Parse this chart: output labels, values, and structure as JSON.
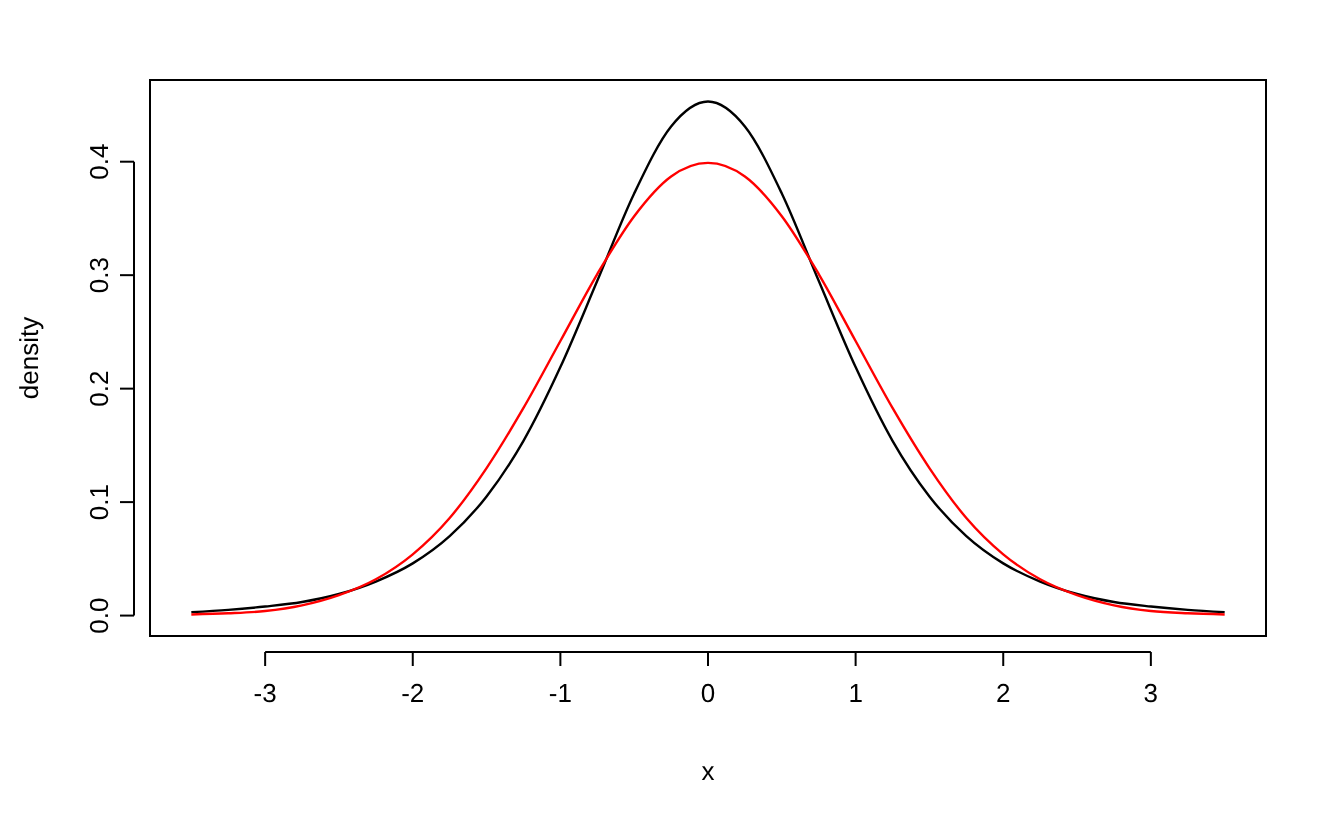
{
  "chart_data": {
    "type": "line",
    "xlabel": "x",
    "ylabel": "density",
    "x": [
      -3.5,
      -3.25,
      -3,
      -2.75,
      -2.5,
      -2.25,
      -2,
      -1.75,
      -1.5,
      -1.25,
      -1,
      -0.75,
      -0.5,
      -0.25,
      0,
      0.25,
      0.5,
      0.75,
      1,
      1.25,
      1.5,
      1.75,
      2,
      2.25,
      2.5,
      2.75,
      3,
      3.25,
      3.5
    ],
    "series": [
      {
        "color": "#000000",
        "values": [
          0.003,
          0.005,
          0.008,
          0.012,
          0.019,
          0.03,
          0.046,
          0.07,
          0.105,
          0.154,
          0.219,
          0.295,
          0.372,
          0.431,
          0.453,
          0.431,
          0.372,
          0.295,
          0.219,
          0.154,
          0.105,
          0.07,
          0.046,
          0.03,
          0.019,
          0.012,
          0.008,
          0.005,
          0.003
        ]
      },
      {
        "color": "#ff0000",
        "values": [
          0.001,
          0.002,
          0.004,
          0.009,
          0.018,
          0.032,
          0.054,
          0.086,
          0.13,
          0.183,
          0.242,
          0.301,
          0.352,
          0.387,
          0.399,
          0.387,
          0.352,
          0.301,
          0.242,
          0.183,
          0.13,
          0.086,
          0.054,
          0.032,
          0.018,
          0.009,
          0.004,
          0.002,
          0.001
        ]
      }
    ],
    "xlim": [
      -3.78,
      3.78
    ],
    "ylim": [
      -0.018,
      0.472
    ],
    "xticks": [
      -3,
      -2,
      -1,
      0,
      1,
      2,
      3
    ],
    "yticks": [
      {
        "value": 0,
        "label": "0.0"
      },
      0.1,
      0.2,
      0.3,
      0.4
    ],
    "grid": false,
    "marker": "none",
    "line_style": "solid"
  }
}
